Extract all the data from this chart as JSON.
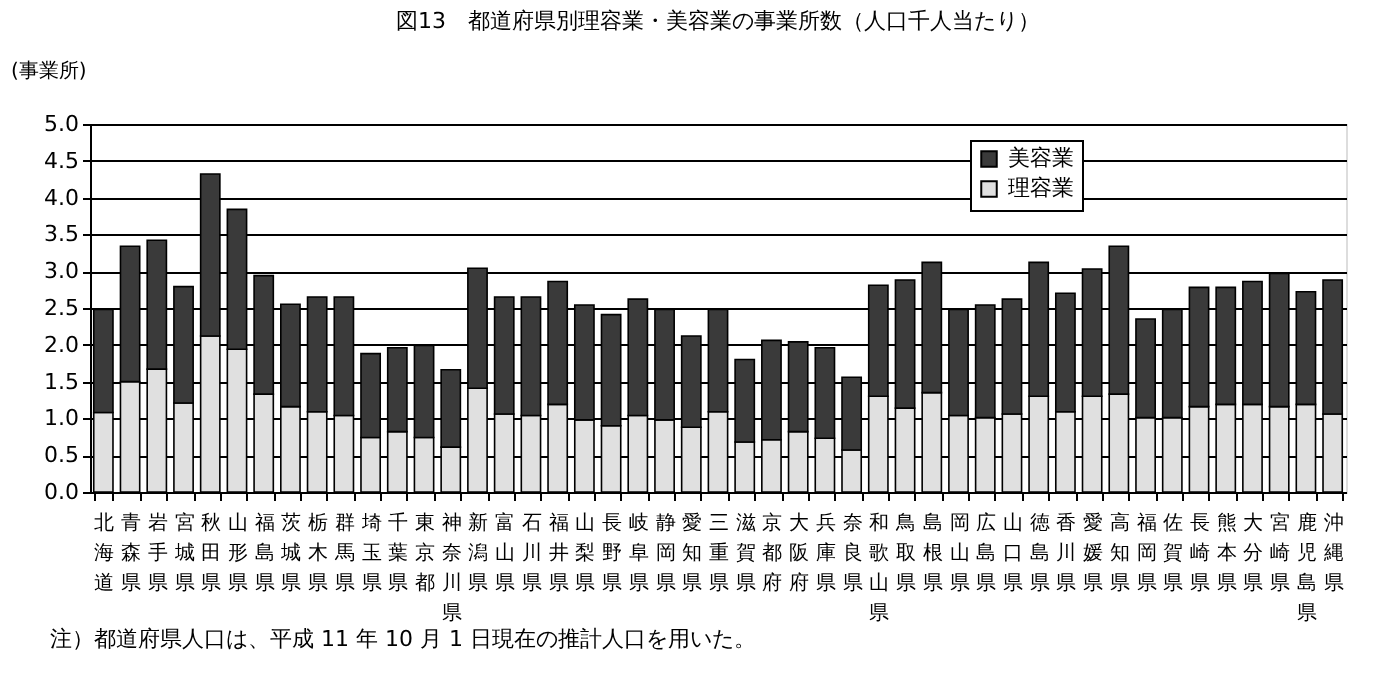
{
  "chart_data": {
    "type": "bar",
    "stacked": true,
    "title": "図13　都道府県別理容業・美容業の事業所数（人口千人当たり）",
    "ylabel": "(事業所)",
    "annotations": [
      "注）都道府県人口は、平成 11 年 10 月 1 日現在の推計人口を用いた。"
    ],
    "categories": [
      "北海道",
      "青森県",
      "岩手県",
      "宮城県",
      "秋田県",
      "山形県",
      "福島県",
      "茨城県",
      "栃木県",
      "群馬県",
      "埼玉県",
      "千葉県",
      "東京都",
      "神奈川県",
      "新潟県",
      "富山県",
      "石川県",
      "福井県",
      "山梨県",
      "長野県",
      "岐阜県",
      "静岡県",
      "愛知県",
      "三重県",
      "滋賀県",
      "京都府",
      "大阪府",
      "兵庫県",
      "奈良県",
      "和歌山県",
      "鳥取県",
      "島根県",
      "岡山県",
      "広島県",
      "山口県",
      "徳島県",
      "香川県",
      "愛媛県",
      "高知県",
      "福岡県",
      "佐賀県",
      "長崎県",
      "熊本県",
      "大分県",
      "宮崎県",
      "鹿児島県",
      "沖縄県"
    ],
    "series": [
      {
        "name": "理容業",
        "color": "#e0e0e0",
        "values": [
          1.08,
          1.5,
          1.67,
          1.21,
          2.12,
          1.94,
          1.33,
          1.16,
          1.09,
          1.04,
          0.74,
          0.82,
          0.74,
          0.61,
          1.41,
          1.06,
          1.04,
          1.19,
          0.98,
          0.9,
          1.04,
          0.98,
          0.88,
          1.09,
          0.68,
          0.71,
          0.82,
          0.73,
          0.57,
          1.3,
          1.14,
          1.35,
          1.04,
          1.01,
          1.06,
          1.3,
          1.09,
          1.3,
          1.33,
          1.01,
          1.01,
          1.16,
          1.19,
          1.19,
          1.16,
          1.19,
          1.06
        ]
      },
      {
        "name": "美容業",
        "color": "#3a3a3a",
        "values": [
          1.4,
          1.84,
          1.75,
          1.58,
          2.2,
          1.9,
          1.61,
          1.39,
          1.56,
          1.61,
          1.14,
          1.14,
          1.25,
          1.05,
          1.63,
          1.59,
          1.61,
          1.67,
          1.56,
          1.51,
          1.58,
          1.5,
          1.24,
          1.39,
          1.12,
          1.35,
          1.22,
          1.23,
          0.99,
          1.51,
          1.74,
          1.77,
          1.44,
          1.53,
          1.56,
          1.82,
          1.61,
          1.73,
          2.01,
          1.34,
          1.47,
          1.62,
          1.59,
          1.67,
          1.81,
          1.53,
          1.82
        ]
      }
    ],
    "ylim": [
      0,
      5
    ],
    "yticks": [
      {
        "value": 0,
        "label": "0.0"
      },
      {
        "value": 0.5,
        "label": "0.5"
      },
      {
        "value": 1,
        "label": "1.0"
      },
      {
        "value": 1.5,
        "label": "1.5"
      },
      {
        "value": 2,
        "label": "2.0"
      },
      {
        "value": 2.5,
        "label": "2.5"
      },
      {
        "value": 3,
        "label": "3.0"
      },
      {
        "value": 3.5,
        "label": "3.5"
      },
      {
        "value": 4,
        "label": "4.0"
      },
      {
        "value": 4.5,
        "label": "4.5"
      },
      {
        "value": 5,
        "label": "5.0"
      }
    ],
    "grid": "y",
    "legend": "top right"
  }
}
